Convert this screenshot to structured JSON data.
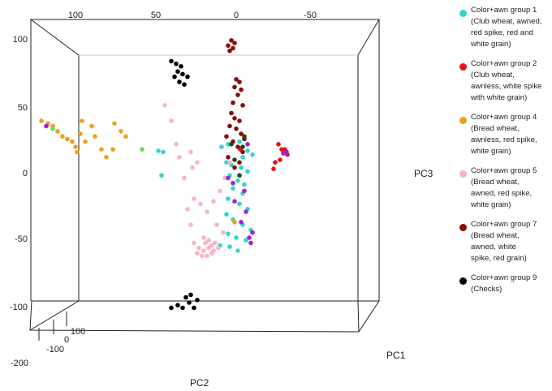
{
  "chart_data": {
    "type": "scatter",
    "projection": "3d",
    "axes": {
      "x": {
        "label": "PC1",
        "ticks": [
          "-100",
          "0",
          "100"
        ]
      },
      "y": {
        "label": "PC2",
        "ticks": [
          "100",
          "50",
          "0",
          "-50",
          "-200"
        ]
      },
      "z": {
        "label": "PC3",
        "ticks": [
          "100",
          "50",
          "0",
          "-50",
          "-100"
        ]
      }
    },
    "series": [
      {
        "name": "Color+awn group 1\n(Club wheat,  awned,\nred spike, red and\nwhite grain)",
        "color": "#33d6c8",
        "points": [
          [
            -18,
            20
          ],
          [
            -10,
            22
          ],
          [
            4,
            24
          ],
          [
            14,
            17
          ],
          [
            20,
            14
          ],
          [
            8,
            12
          ],
          [
            -12,
            8
          ],
          [
            -6,
            6
          ],
          [
            6,
            4
          ],
          [
            14,
            1
          ],
          [
            -8,
            -2
          ],
          [
            2,
            -6
          ],
          [
            10,
            -9
          ],
          [
            -4,
            -12
          ],
          [
            8,
            -16
          ],
          [
            -10,
            -20
          ],
          [
            4,
            -24
          ],
          [
            14,
            -28
          ],
          [
            -12,
            -32
          ],
          [
            -4,
            -36
          ],
          [
            8,
            -40
          ],
          [
            18,
            -44
          ],
          [
            -10,
            -47
          ],
          [
            0,
            -50
          ],
          [
            12,
            -52
          ],
          [
            -20,
            -56
          ],
          [
            -8,
            -57
          ],
          [
            2,
            -60
          ],
          [
            -96,
            17
          ],
          [
            -90,
            16
          ],
          [
            -92,
            -2
          ]
        ]
      },
      {
        "name": "Color+awn group 2\n(Club wheat,\nawnless, white spike\nwith white grain)",
        "color": "#ee1111",
        "points": [
          [
            52,
            22
          ],
          [
            56,
            18
          ],
          [
            54,
            10
          ],
          [
            48,
            8
          ],
          [
            46,
            3
          ],
          [
            60,
            18
          ],
          [
            63,
            14
          ],
          [
            5,
            18
          ]
        ]
      },
      {
        "name": "Color+awn group 4\n(Bread wheat,\nawnless, red spike,\nwhite grain)",
        "color": "#f0a018",
        "points": [
          [
            -240,
            40
          ],
          [
            -232,
            38
          ],
          [
            -226,
            36
          ],
          [
            -220,
            32
          ],
          [
            -214,
            28
          ],
          [
            -208,
            26
          ],
          [
            -202,
            24
          ],
          [
            -198,
            20
          ],
          [
            -196,
            16
          ],
          [
            -190,
            40
          ],
          [
            -178,
            36
          ],
          [
            -174,
            28
          ],
          [
            -166,
            18
          ],
          [
            -160,
            12
          ],
          [
            -186,
            24
          ],
          [
            -192,
            30
          ],
          [
            -150,
            38
          ],
          [
            -142,
            32
          ],
          [
            -152,
            18
          ],
          [
            -136,
            28
          ],
          [
            -2,
            -38
          ]
        ]
      },
      {
        "name": "Color+awn group 5\n(Bread wheat,\nawned, red spike,\nwhite grain)",
        "color": "#f5b6c1",
        "points": [
          [
            -88,
            52
          ],
          [
            -80,
            40
          ],
          [
            -74,
            22
          ],
          [
            -70,
            12
          ],
          [
            -56,
            16
          ],
          [
            -48,
            8
          ],
          [
            -52,
            -20
          ],
          [
            -44,
            -24
          ],
          [
            -56,
            -40
          ],
          [
            -40,
            -50
          ],
          [
            -38,
            -54
          ],
          [
            -34,
            -52
          ],
          [
            -30,
            -56
          ],
          [
            -26,
            -54
          ],
          [
            -22,
            -58
          ],
          [
            -28,
            -60
          ],
          [
            -34,
            -58
          ],
          [
            -40,
            -60
          ],
          [
            -46,
            -58
          ],
          [
            -52,
            -54
          ],
          [
            -48,
            -62
          ],
          [
            -42,
            -64
          ],
          [
            -36,
            -64
          ],
          [
            -30,
            -62
          ],
          [
            -60,
            -28
          ],
          [
            -64,
            -4
          ],
          [
            -54,
            4
          ],
          [
            -36,
            -30
          ],
          [
            -28,
            -22
          ],
          [
            -20,
            -14
          ],
          [
            -14,
            -4
          ],
          [
            -24,
            -40
          ],
          [
            -16,
            -46
          ],
          [
            -8,
            8
          ]
        ]
      },
      {
        "name": "Color+awn group 7\n(Bread wheat,\nawned, white\nspike, red grain)",
        "color": "#8b0a0a",
        "points": [
          [
            -10,
            98
          ],
          [
            -4,
            96
          ],
          [
            -6,
            102
          ],
          [
            -2,
            100
          ],
          [
            -8,
            94
          ],
          [
            0,
            72
          ],
          [
            4,
            70
          ],
          [
            -2,
            66
          ],
          [
            6,
            64
          ],
          [
            2,
            60
          ],
          [
            -4,
            54
          ],
          [
            8,
            52
          ],
          [
            -6,
            46
          ],
          [
            -2,
            42
          ],
          [
            4,
            40
          ],
          [
            -8,
            36
          ],
          [
            0,
            34
          ],
          [
            6,
            30
          ],
          [
            -12,
            28
          ],
          [
            10,
            26
          ],
          [
            -4,
            24
          ],
          [
            2,
            20
          ],
          [
            8,
            16
          ],
          [
            -10,
            12
          ],
          [
            4,
            8
          ],
          [
            -2,
            4
          ]
        ]
      },
      {
        "name": "Color+awn group 9\n(Checks)",
        "color": "#000000",
        "points": [
          [
            -80,
            86
          ],
          [
            -74,
            84
          ],
          [
            -68,
            82
          ],
          [
            -72,
            78
          ],
          [
            -66,
            76
          ],
          [
            -60,
            74
          ],
          [
            -76,
            74
          ],
          [
            -70,
            70
          ],
          [
            -64,
            68
          ],
          [
            -80,
            -104
          ],
          [
            -72,
            -102
          ],
          [
            -66,
            -104
          ],
          [
            -58,
            -100
          ],
          [
            -52,
            -104
          ],
          [
            -62,
            -96
          ],
          [
            -56,
            -94
          ],
          [
            -48,
            -98
          ]
        ]
      },
      {
        "color": "#9b22e0",
        "points": [
          [
            62,
            16
          ],
          [
            58,
            15
          ],
          [
            14,
            22
          ],
          [
            -4,
            -8
          ],
          [
            10,
            -14
          ],
          [
            -2,
            -22
          ],
          [
            12,
            -30
          ],
          [
            6,
            -38
          ],
          [
            16,
            -50
          ],
          [
            18,
            -54
          ],
          [
            20,
            -46
          ],
          [
            -234,
            36
          ],
          [
            -10,
            -4
          ]
        ]
      },
      {
        "color": "#1a4d1a",
        "points": [
          [
            10,
            28
          ],
          [
            -6,
            22
          ],
          [
            -2,
            10
          ],
          [
            4,
            -2
          ],
          [
            8,
            20
          ]
        ]
      },
      {
        "color": "#66dd66",
        "points": [
          [
            -226,
            34
          ],
          [
            -116,
            18
          ]
        ]
      }
    ]
  }
}
